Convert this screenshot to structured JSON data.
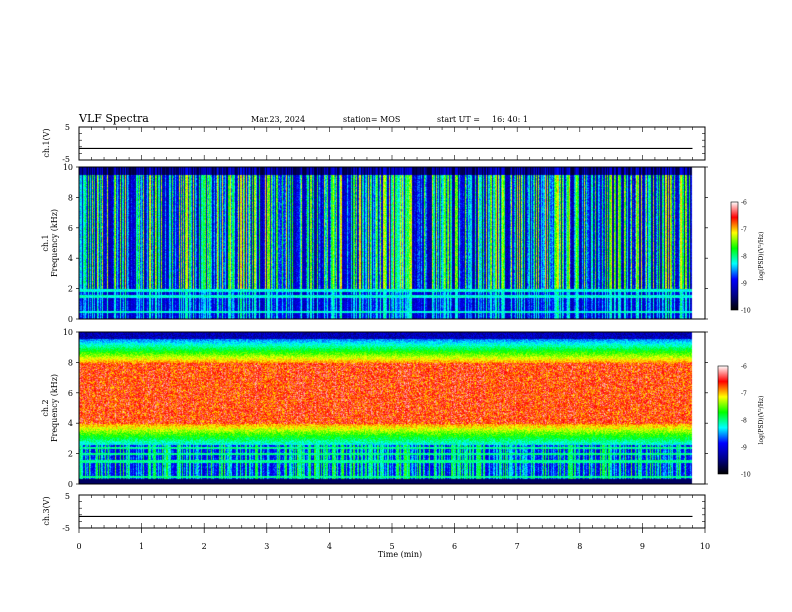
{
  "header": {
    "title": "VLF Spectra",
    "date": "Mar.23, 2024",
    "station": "station= MOS",
    "start_ut": "start UT =",
    "start_time": "16: 40: 1"
  },
  "colors": {
    "colormap": [
      "#000000",
      "#00008b",
      "#0000ff",
      "#00ffff",
      "#00ff00",
      "#ffff00",
      "#ff0000",
      "#ffffff"
    ],
    "trace": "#000000",
    "background": "#ffffff"
  },
  "chart_data": [
    {
      "type": "line",
      "name": "ch1-voltage",
      "ylabel": "ch.1(V)",
      "ylim": [
        -5,
        5
      ],
      "y_tick_labels": [
        "5",
        "-5"
      ],
      "xlim": [
        0,
        10
      ],
      "x": [
        0,
        9.8
      ],
      "values": [
        -1.5,
        -1.5
      ]
    },
    {
      "type": "heatmap",
      "name": "ch1-spectrogram",
      "ylabel": "ch.1\nFrequency (kHz)",
      "ylim": [
        0,
        10
      ],
      "y_ticks": [
        0,
        2,
        4,
        6,
        8,
        10
      ],
      "xlim": [
        0,
        10
      ],
      "data_extent_min": 9.8,
      "colorbar": {
        "label": "log(PSD)(V²/Hz)",
        "range": [
          -10,
          -6
        ],
        "ticks": [
          -6,
          -7,
          -8,
          -9,
          -10
        ]
      },
      "bands": {
        "bright_top_khz": 9.0,
        "dark_above_khz": 9.5,
        "lines_khz": [
          0.5,
          1.5,
          1.9
        ]
      }
    },
    {
      "type": "heatmap",
      "name": "ch2-spectrogram",
      "ylabel": "ch.2\nFrequency (kHz)",
      "ylim": [
        0,
        10
      ],
      "y_ticks": [
        0,
        2,
        4,
        6,
        8,
        10
      ],
      "xlim": [
        0,
        10
      ],
      "data_extent_min": 9.8,
      "colorbar": {
        "label": "log(PSD)(V²/Hz)",
        "range": [
          -10,
          -6
        ],
        "ticks": [
          -6,
          -7,
          -8,
          -9,
          -10
        ]
      },
      "bands": {
        "intense_low_khz": 4.0,
        "intense_high_khz": 8.0,
        "lines_khz": [
          0.5,
          1.5,
          2.0,
          2.4
        ]
      }
    },
    {
      "type": "line",
      "name": "ch3-voltage",
      "ylabel": "ch.3(V)",
      "ylim": [
        -5,
        5
      ],
      "y_tick_labels": [
        "5",
        "-5"
      ],
      "xlim": [
        0,
        10
      ],
      "x": [
        0,
        9.8
      ],
      "values": [
        -1.5,
        -1.5
      ]
    }
  ],
  "xaxis": {
    "label": "Time (min)",
    "ticks": [
      "0",
      "1",
      "2",
      "3",
      "4",
      "5",
      "6",
      "7",
      "8",
      "9",
      "10"
    ]
  }
}
